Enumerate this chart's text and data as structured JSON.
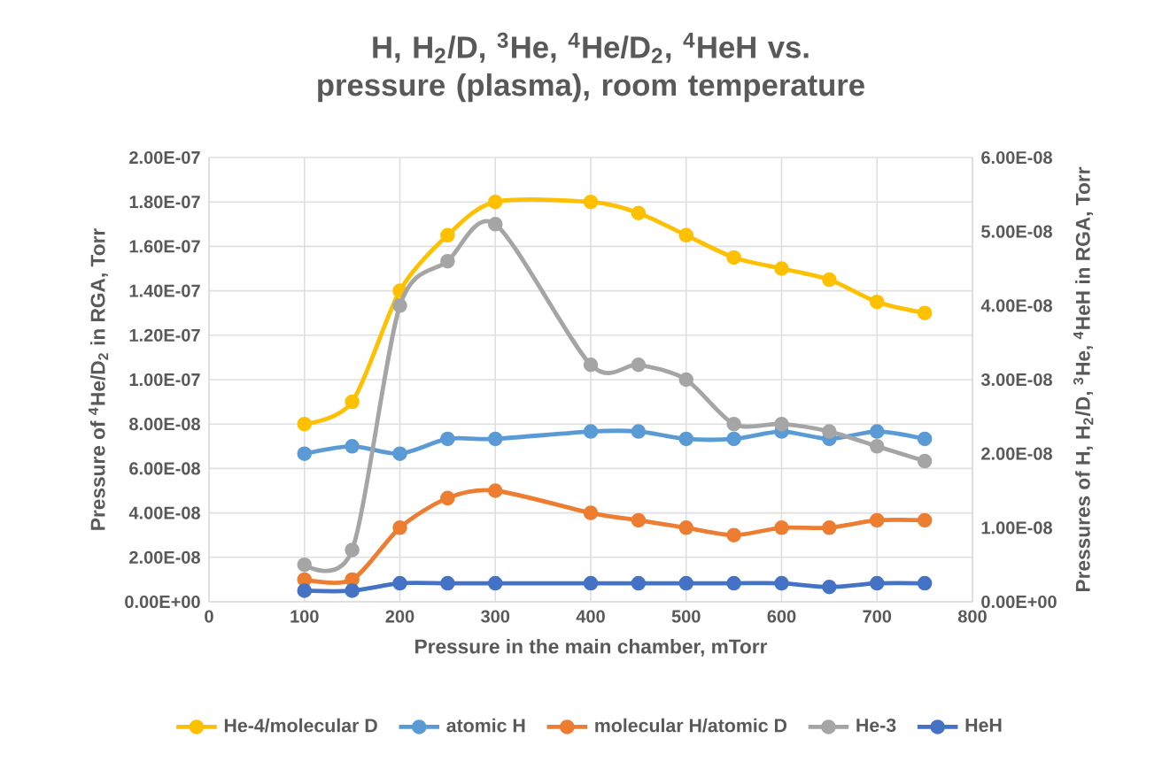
{
  "chart_data": {
    "type": "line",
    "title": "H, H$_{2}$/D, $^{3}$He, $^{4}$He/D$_{2}$, $^{4}$HeH vs. pressure (plasma), room temperature",
    "xlabel": "Pressure in the main chamber, mTorr",
    "ylabel": "Pressure of $^{4}$He/D$_{2}$ in RGA, Torr",
    "y2label": "Pressures of H, H$_{2}$/D, $^{3}$He, $^{4}$HeH in RGA, Torr",
    "x": [
      100,
      150,
      200,
      250,
      300,
      400,
      450,
      500,
      550,
      600,
      650,
      700,
      750
    ],
    "xlim": [
      0,
      800
    ],
    "xticks": [
      0,
      100,
      200,
      300,
      400,
      500,
      600,
      700,
      800
    ],
    "ylim": [
      0,
      2e-07
    ],
    "yticks": [
      {
        "value": 0,
        "label": "0.00E+00"
      },
      {
        "value": 2e-08,
        "label": "2.00E-08"
      },
      {
        "value": 4e-08,
        "label": "4.00E-08"
      },
      {
        "value": 6e-08,
        "label": "6.00E-08"
      },
      {
        "value": 8e-08,
        "label": "8.00E-08"
      },
      {
        "value": 1e-07,
        "label": "1.00E-07"
      },
      {
        "value": 1.2e-07,
        "label": "1.20E-07"
      },
      {
        "value": 1.4e-07,
        "label": "1.40E-07"
      },
      {
        "value": 1.6e-07,
        "label": "1.60E-07"
      },
      {
        "value": 1.8e-07,
        "label": "1.80E-07"
      },
      {
        "value": 2e-07,
        "label": "2.00E-07"
      }
    ],
    "y2lim": [
      0,
      6e-08
    ],
    "y2ticks": [
      {
        "value": 0,
        "label": "0.00E+00"
      },
      {
        "value": 1e-08,
        "label": "1.00E-08"
      },
      {
        "value": 2e-08,
        "label": "2.00E-08"
      },
      {
        "value": 3e-08,
        "label": "3.00E-08"
      },
      {
        "value": 4e-08,
        "label": "4.00E-08"
      },
      {
        "value": 5e-08,
        "label": "5.00E-08"
      },
      {
        "value": 6e-08,
        "label": "6.00E-08"
      }
    ],
    "series": [
      {
        "name": "He-4/molecular D",
        "color": "#ffc000",
        "values": [
          8e-08,
          9e-08,
          1.4e-07,
          1.65e-07,
          1.8e-07,
          1.8e-07,
          1.75e-07,
          1.65e-07,
          1.55e-07,
          1.5e-07,
          1.45e-07,
          1.35e-07,
          1.3e-07
        ]
      },
      {
        "name": "atomic H",
        "color": "#5b9bd5",
        "axis": "y2",
        "values": [
          2e-08,
          2.1e-08,
          2e-08,
          2.2e-08,
          2.2e-08,
          2.3e-08,
          2.3e-08,
          2.2e-08,
          2.2e-08,
          2.3e-08,
          2.2e-08,
          2.3e-08,
          2.2e-08
        ]
      },
      {
        "name": "molecular H/atomic D",
        "color": "#ed7d31",
        "axis": "y2",
        "values": [
          3e-09,
          3e-09,
          1e-08,
          1.4e-08,
          1.5e-08,
          1.2e-08,
          1.1e-08,
          1e-08,
          9e-09,
          1e-08,
          1e-08,
          1.1e-08,
          1.1e-08
        ]
      },
      {
        "name": "He-3",
        "color": "#a5a5a5",
        "axis": "y2",
        "values": [
          5e-09,
          7e-09,
          4e-08,
          4.6e-08,
          5.1e-08,
          3.2e-08,
          3.2e-08,
          3e-08,
          2.4e-08,
          2.4e-08,
          2.3e-08,
          2.1e-08,
          1.9e-08
        ]
      },
      {
        "name": "HeH",
        "color": "#4472c4",
        "axis": "y2",
        "values": [
          1.5e-09,
          1.5e-09,
          2.5e-09,
          2.5e-09,
          2.5e-09,
          2.5e-09,
          2.5e-09,
          2.5e-09,
          2.5e-09,
          2.5e-09,
          2e-09,
          2.5e-09,
          2.5e-09
        ]
      }
    ],
    "grid": true,
    "legend": "bottom",
    "marker": "circle",
    "line_style": "solid"
  }
}
